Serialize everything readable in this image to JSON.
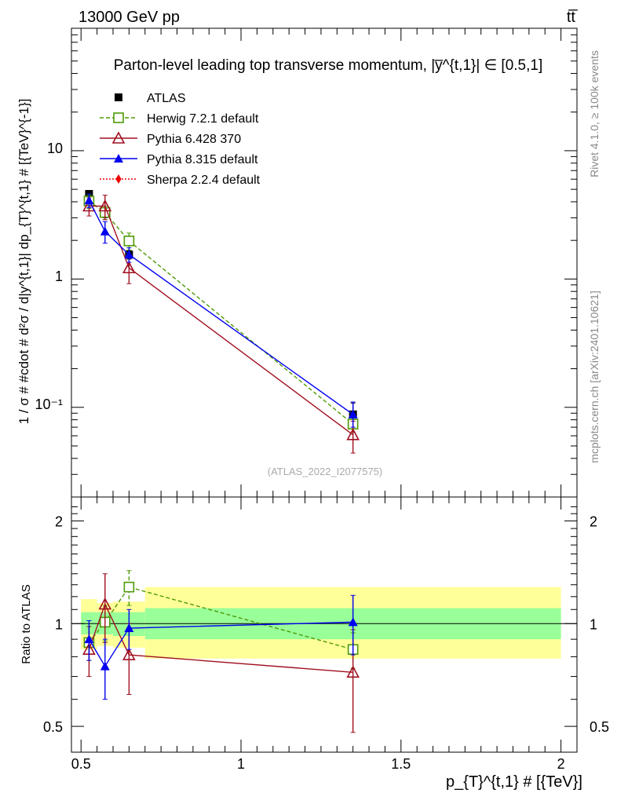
{
  "header": {
    "left": "13000 GeV pp",
    "right": "tt̅"
  },
  "side": {
    "rivet": "Rivet 4.1.0, ≥ 100k events",
    "mcplots": "mcplots.cern.ch [arXiv:2401.10621]"
  },
  "chart_data": [
    {
      "type": "scatter",
      "title": "Parton-level leading top transverse momentum, |y̅^{t,1}| ∈ [0.5,1]",
      "watermark": "(ATLAS_2022_I2077575)",
      "ylabel": "1 / σ # #cdot # d²σ / d|y^{t,1}| dp_{T}^{t,1} # [{TeV}^{-1}]",
      "yscale": "log",
      "ylim": [
        0.02,
        90
      ],
      "xlim": [
        0.47,
        2.05
      ],
      "ytick_labels": [
        "10⁻¹",
        "1",
        "10"
      ],
      "legend_placement": "top-left",
      "series": [
        {
          "name": "ATLAS",
          "color": "#000000",
          "marker": "square-filled",
          "line": "none",
          "x": [
            0.525,
            0.575,
            0.65,
            1.35
          ],
          "y": [
            4.6,
            3.25,
            1.55,
            0.088
          ],
          "err_lo": [
            0.3,
            0.25,
            0.12,
            0.015
          ],
          "err_hi": [
            0.3,
            0.25,
            0.12,
            0.02
          ]
        },
        {
          "name": "Herwig 7.2.1 default",
          "color": "#4e9a06",
          "marker": "square-open",
          "line": "dashed",
          "x": [
            0.525,
            0.575,
            0.65,
            1.35
          ],
          "y": [
            4.05,
            3.3,
            1.98,
            0.074
          ],
          "err_lo": [
            0.5,
            0.4,
            0.3,
            0.01
          ],
          "err_hi": [
            0.5,
            0.4,
            0.3,
            0.01
          ]
        },
        {
          "name": "Pythia 6.428 370",
          "color": "#a01020",
          "marker": "triangle-open",
          "line": "solid",
          "x": [
            0.525,
            0.575,
            0.65,
            1.35
          ],
          "y": [
            3.7,
            3.7,
            1.22,
            0.061
          ],
          "err_lo": [
            0.6,
            0.8,
            0.3,
            0.017
          ],
          "err_hi": [
            0.6,
            0.8,
            0.3,
            0.017
          ]
        },
        {
          "name": "Pythia 8.315 default",
          "color": "#0000ee",
          "marker": "triangle-filled",
          "line": "solid",
          "x": [
            0.525,
            0.575,
            0.65,
            1.35
          ],
          "y": [
            4.1,
            2.35,
            1.55,
            0.088
          ],
          "err_lo": [
            0.5,
            0.45,
            0.2,
            0.018
          ],
          "err_hi": [
            0.5,
            0.45,
            0.2,
            0.022
          ]
        },
        {
          "name": "Sherpa 2.2.4 default",
          "color": "#ee0000",
          "marker": "diamond-filled",
          "line": "dotted",
          "x": [],
          "y": [],
          "err_lo": [],
          "err_hi": []
        }
      ]
    },
    {
      "type": "scatter",
      "ylabel": "Ratio to ATLAS",
      "xlabel": "p_{T}^{t,1} # [{TeV}]",
      "xlim": [
        0.47,
        2.05
      ],
      "ylim": [
        0.42,
        2.35
      ],
      "yscale": "log",
      "x_ticks": [
        0.5,
        1,
        1.5,
        2
      ],
      "x_tick_labels": [
        "0.5",
        "1",
        "1.5",
        "2"
      ],
      "y_ticks": [
        0.5,
        1,
        2
      ],
      "y_tick_labels": [
        "0.5",
        "1",
        "2"
      ],
      "bands": [
        {
          "x0": 0.5,
          "x1": 0.55,
          "inner": [
            0.93,
            1.08
          ],
          "outer": [
            0.84,
            1.18
          ]
        },
        {
          "x0": 0.55,
          "x1": 0.6,
          "inner": [
            0.93,
            1.08
          ],
          "outer": [
            0.86,
            1.15
          ]
        },
        {
          "x0": 0.6,
          "x1": 0.7,
          "inner": [
            0.92,
            1.08
          ],
          "outer": [
            0.85,
            1.16
          ]
        },
        {
          "x0": 0.7,
          "x1": 2.0,
          "inner": [
            0.9,
            1.11
          ],
          "outer": [
            0.79,
            1.28
          ]
        }
      ],
      "series": [
        {
          "name": "Herwig 7.2.1 default",
          "color": "#4e9a06",
          "marker": "square-open",
          "line": "dashed",
          "x": [
            0.525,
            0.575,
            0.65,
            1.35
          ],
          "y": [
            0.88,
            1.01,
            1.28,
            0.84
          ],
          "err_lo": [
            0.1,
            0.12,
            0.15,
            0.1
          ],
          "err_hi": [
            0.1,
            0.12,
            0.15,
            0.1
          ]
        },
        {
          "name": "Pythia 6.428 370",
          "color": "#a01020",
          "marker": "triangle-open",
          "line": "solid",
          "x": [
            0.525,
            0.575,
            0.65,
            1.35
          ],
          "y": [
            0.84,
            1.14,
            0.81,
            0.72
          ],
          "err_lo": [
            0.14,
            0.26,
            0.19,
            0.24
          ],
          "err_hi": [
            0.14,
            0.26,
            0.19,
            0.24
          ]
        },
        {
          "name": "Pythia 8.315 default",
          "color": "#0000ee",
          "marker": "triangle-filled",
          "line": "solid",
          "x": [
            0.525,
            0.575,
            0.65,
            1.35
          ],
          "y": [
            0.9,
            0.75,
            0.97,
            1.01
          ],
          "err_lo": [
            0.12,
            0.15,
            0.13,
            0.2
          ],
          "err_hi": [
            0.12,
            0.15,
            0.13,
            0.2
          ]
        }
      ]
    }
  ]
}
